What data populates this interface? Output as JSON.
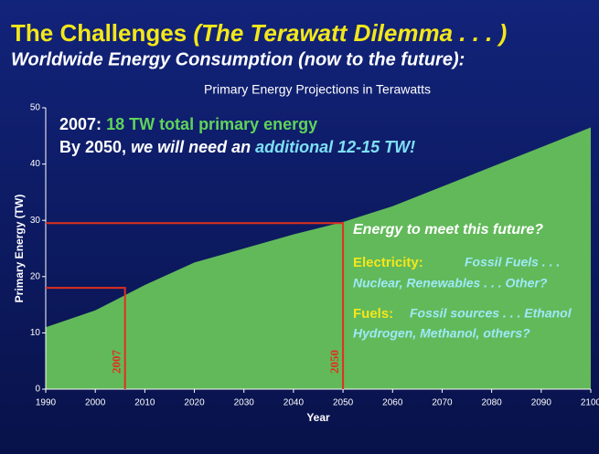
{
  "header": {
    "title": "The Challenges",
    "title_note": "(The Terawatt Dilemma . . . )",
    "subtitle": "Worldwide Energy Consumption (now to the future):"
  },
  "chart_data": {
    "type": "area",
    "title": "Primary Energy Projections in Terawatts",
    "x_label": "Year",
    "y_label": "Primary Energy (TW)",
    "x": [
      1990,
      2000,
      2010,
      2020,
      2030,
      2040,
      2050,
      2060,
      2070,
      2080,
      2090,
      2100
    ],
    "values": [
      11,
      14,
      18.5,
      22.5,
      25,
      27.5,
      29.7,
      32.5,
      36,
      39.5,
      43,
      46.5
    ],
    "color": "#62b95a",
    "xlim": [
      1990,
      2100
    ],
    "xticks": [
      1990,
      2000,
      2010,
      2020,
      2030,
      2040,
      2050,
      2060,
      2070,
      2080,
      2090,
      2100
    ],
    "ylim": [
      0,
      50
    ],
    "yticks": [
      0,
      10,
      20,
      30,
      40,
      50
    ],
    "markers": [
      {
        "label": "2007",
        "x": 2006,
        "y": 18
      },
      {
        "label": "2050",
        "x": 2050,
        "y": 29.5
      }
    ],
    "marker_color": "#e0301e",
    "annotations": {
      "year_2007": "2007:",
      "total_2007": "18 TW total primary energy",
      "by_2050": "By 2050,",
      "need": "we will need an",
      "additional": "additional 12-15 TW!",
      "question": "Energy to meet this future?",
      "electricity": "Electricity:",
      "fossil_fuels": "Fossil Fuels . . .",
      "nuclear": "Nuclear, Renewables . . . Other?",
      "fuels": "Fuels:",
      "fossil_sources": "Fossil sources . . . Ethanol",
      "hydrogen": "Hydrogen, Methanol, others?"
    }
  }
}
